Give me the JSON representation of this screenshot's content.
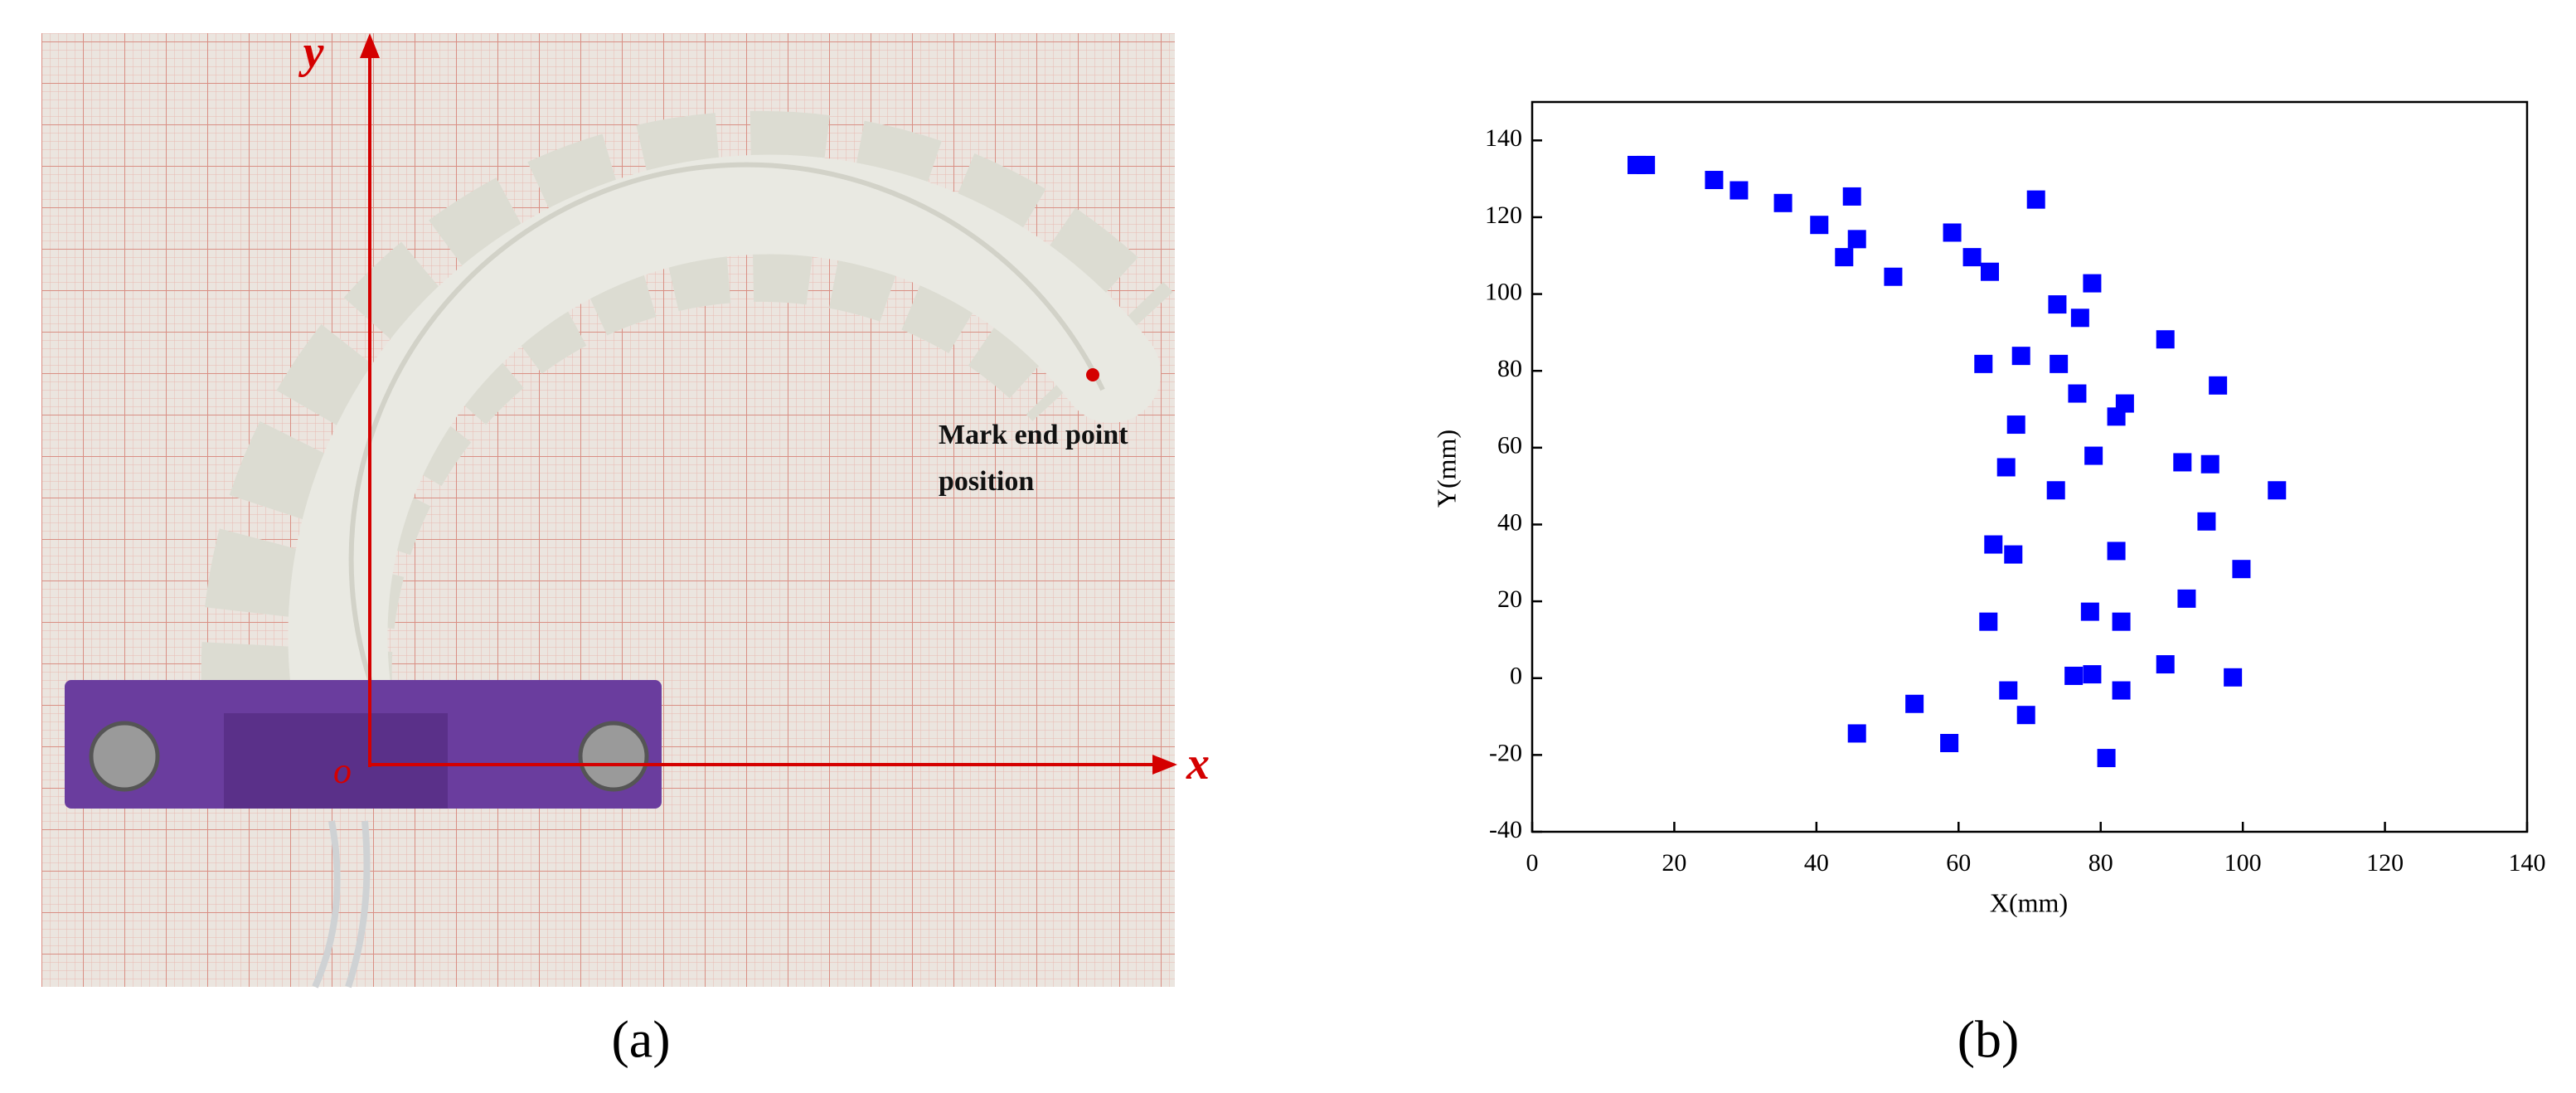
{
  "chart_data": {
    "type": "scatter",
    "x_label": "X(mm)",
    "y_label": "Y(mm)",
    "color": "#0000ff",
    "x": [
      14.7,
      16,
      25.6,
      29.1,
      35.3,
      40.4,
      45,
      45.7,
      43.9,
      50.8,
      59.1,
      61.9,
      64.4,
      70.9,
      73.9,
      77.1,
      78.8,
      89.1,
      63.5,
      68.8,
      74.1,
      76.7,
      83.4,
      82.2,
      96.5,
      68.1,
      66.7,
      79,
      91.5,
      95.4,
      104.8,
      73.7,
      94.9,
      64.9,
      67.7,
      82.2,
      99.8,
      92.1,
      78.5,
      82.9,
      64.2,
      89.1,
      76.2,
      78.8,
      98.6,
      67,
      82.9,
      69.5,
      53.8,
      45.7,
      58.7,
      80.8
    ],
    "y": [
      133.6,
      133.6,
      129.7,
      127,
      123.7,
      118,
      125.4,
      114.3,
      109.6,
      104.5,
      116,
      109.6,
      105.8,
      124.6,
      97.3,
      93.8,
      102.8,
      88.2,
      81.8,
      83.9,
      81.8,
      74.1,
      71.5,
      68.1,
      76.2,
      66,
      54.9,
      57.9,
      56.2,
      55.7,
      48.9,
      48.9,
      40.8,
      34.8,
      32.2,
      33.1,
      28.4,
      20.7,
      17.3,
      14.7,
      14.7,
      3.6,
      0.6,
      1,
      0.2,
      -3.2,
      -3.2,
      -9.6,
      -6.7,
      -14.4,
      -16.9,
      -20.8
    ],
    "xlim": [
      0,
      140
    ],
    "ylim": [
      -40,
      150
    ],
    "xticks": [
      0,
      20,
      40,
      60,
      80,
      100,
      120,
      140
    ],
    "yticks": [
      -40,
      -20,
      0,
      20,
      40,
      60,
      80,
      100,
      120,
      140
    ]
  },
  "photo": {
    "y_axis_label": "y",
    "x_axis_label": "x",
    "origin_label": "o",
    "annotation": [
      "Mark end point",
      "position"
    ]
  },
  "captions": {
    "a": "(a)",
    "b": "(b)"
  }
}
